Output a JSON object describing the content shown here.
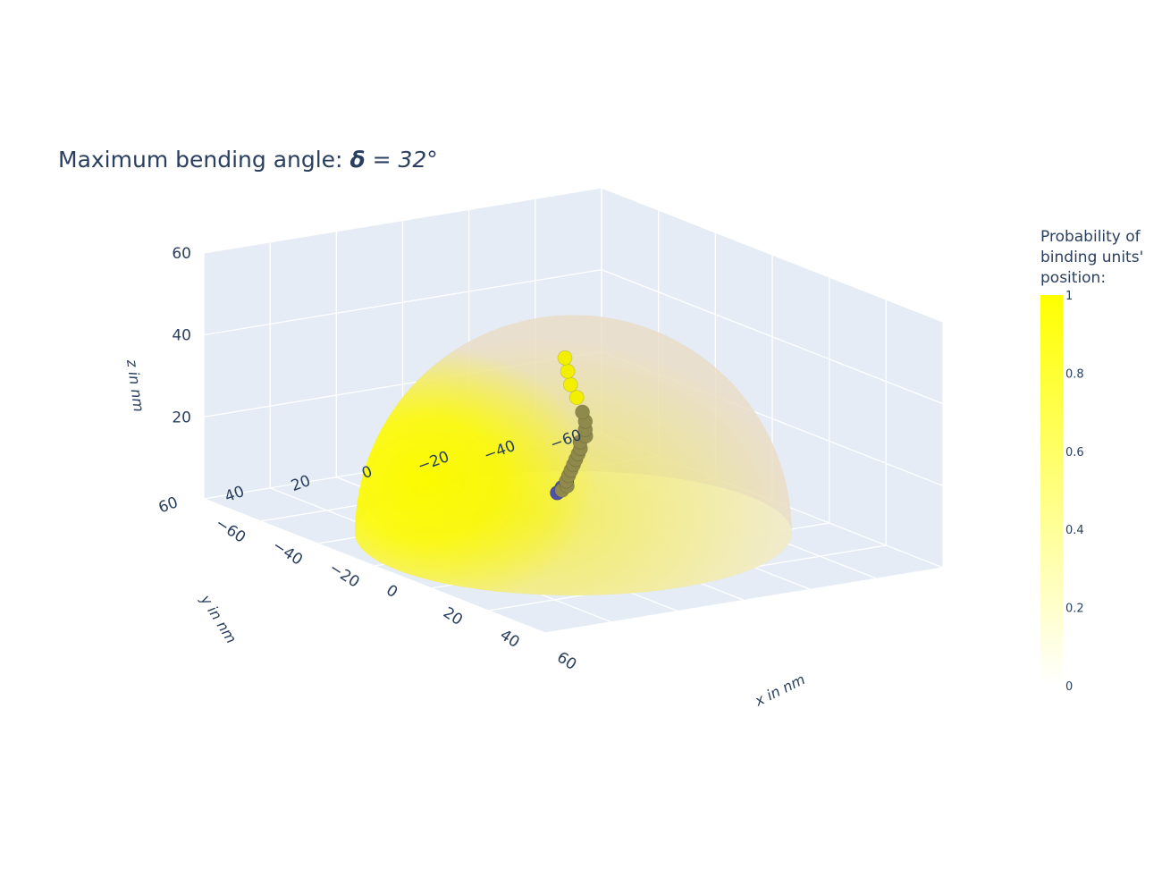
{
  "chart_data": {
    "type": "scatter3d",
    "title_prefix": "Maximum bending angle: ",
    "title_symbol": "δ",
    "title_value": " = 32°",
    "axes": {
      "x": {
        "title": "x in nm",
        "range": [
          -60,
          60
        ],
        "ticks": [
          "−60",
          "−40",
          "−20",
          "0",
          "20",
          "40",
          "60"
        ]
      },
      "y": {
        "title": "y in nm",
        "range": [
          -60,
          60
        ],
        "ticks": [
          "−60",
          "−40",
          "−20",
          "0",
          "20",
          "40",
          "60"
        ]
      },
      "z": {
        "title": "z in nm",
        "range": [
          0,
          60
        ],
        "ticks": [
          "20",
          "40",
          "60"
        ]
      }
    },
    "surface": {
      "shape": "hemisphere",
      "radius": 50,
      "colorscale": [
        "#ffffff",
        "#ffff00"
      ],
      "opacity": 0.5
    },
    "colorbar": {
      "title": [
        "Probability of",
        "binding units'",
        "position:"
      ],
      "ticks": [
        "1",
        "0.8",
        "0.6",
        "0.4",
        "0.2",
        "0"
      ]
    },
    "chain": {
      "colors": {
        "base": "#5050a8",
        "middle": "#8f8a4c",
        "tip": "#f2f000"
      },
      "points": [
        [
          -28,
          -22,
          2,
          "base"
        ],
        [
          -25,
          -18,
          2,
          "base"
        ],
        [
          -22,
          -14,
          2,
          "base"
        ],
        [
          -18,
          -12,
          4,
          "middle"
        ],
        [
          -15,
          -11,
          6,
          "middle"
        ],
        [
          -13,
          -9,
          8,
          "middle"
        ],
        [
          -11,
          -8,
          10,
          "middle"
        ],
        [
          -9,
          -7,
          12,
          "middle"
        ],
        [
          -7,
          -6,
          14,
          "middle"
        ],
        [
          -5,
          -5,
          16,
          "middle"
        ],
        [
          -3,
          -4,
          18,
          "middle"
        ],
        [
          -1,
          -3,
          20,
          "middle"
        ],
        [
          0,
          -2,
          22,
          "middle"
        ],
        [
          2,
          -2,
          24,
          "middle"
        ],
        [
          3,
          -1,
          26,
          "middle"
        ],
        [
          3,
          -1,
          28,
          "middle"
        ],
        [
          2,
          -1,
          30,
          "middle"
        ],
        [
          0,
          -1,
          33,
          "tip"
        ],
        [
          -1,
          0,
          36,
          "tip"
        ],
        [
          -2,
          0,
          39,
          "tip"
        ],
        [
          -3,
          0,
          42,
          "tip"
        ]
      ]
    }
  }
}
